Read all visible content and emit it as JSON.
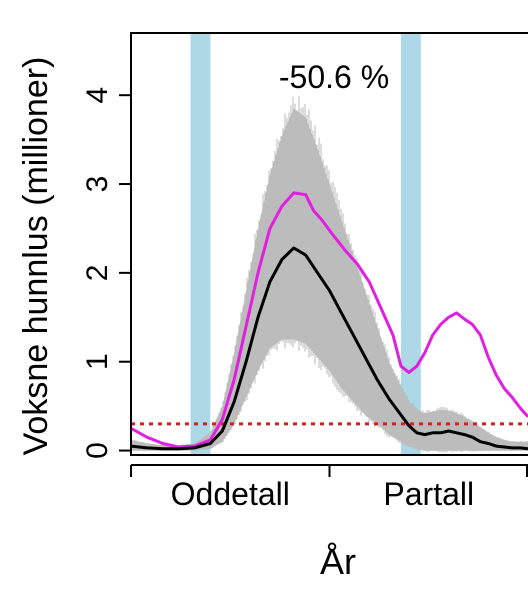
{
  "chart_data": {
    "type": "line",
    "title": "",
    "xlabel": "År",
    "ylabel": "Voksne hunnlus (millioner)",
    "ylim": [
      -0.05,
      4.7
    ],
    "xlim": [
      0,
      100
    ],
    "annotation": "-50.6 %",
    "x_tick_labels": [
      {
        "label": "Oddetall",
        "x": 25
      },
      {
        "label": "Partall",
        "x": 75
      }
    ],
    "x_ticks": [
      0,
      50,
      100
    ],
    "y_ticks": [
      0,
      1,
      2,
      3,
      4
    ],
    "highlight_bands": [
      [
        15,
        20
      ],
      [
        68,
        73
      ]
    ],
    "threshold": 0.3,
    "colors": {
      "band": "#add8e6",
      "threshold": "#cc2222",
      "ci": "#c0c0c0",
      "magenta": "#e020e0",
      "black": "#000000"
    },
    "series": [
      {
        "color": "magenta",
        "x": [
          0,
          4,
          8,
          12,
          16,
          20,
          23,
          26,
          29,
          32,
          35,
          38,
          41,
          44,
          46,
          48,
          51,
          54,
          57,
          60,
          63,
          66,
          68,
          70,
          72,
          74,
          76,
          78,
          80,
          82,
          84,
          86,
          88,
          90,
          92,
          94,
          96,
          98,
          100
        ],
        "y": [
          0.25,
          0.15,
          0.08,
          0.04,
          0.05,
          0.12,
          0.35,
          0.8,
          1.4,
          2.0,
          2.5,
          2.75,
          2.9,
          2.88,
          2.7,
          2.6,
          2.42,
          2.25,
          2.1,
          1.9,
          1.6,
          1.3,
          0.95,
          0.88,
          0.95,
          1.1,
          1.3,
          1.42,
          1.5,
          1.55,
          1.48,
          1.42,
          1.3,
          1.05,
          0.85,
          0.7,
          0.6,
          0.48,
          0.38
        ]
      },
      {
        "color": "black",
        "x": [
          0,
          4,
          8,
          12,
          16,
          20,
          23,
          26,
          29,
          32,
          35,
          38,
          41,
          44,
          47,
          50,
          53,
          56,
          59,
          62,
          65,
          68,
          70,
          72,
          74,
          76,
          78,
          80,
          82,
          84,
          86,
          88,
          90,
          92,
          94,
          96,
          98,
          100
        ],
        "y": [
          0.05,
          0.03,
          0.02,
          0.02,
          0.03,
          0.08,
          0.22,
          0.55,
          1.0,
          1.5,
          1.9,
          2.15,
          2.28,
          2.2,
          2.0,
          1.8,
          1.55,
          1.3,
          1.05,
          0.8,
          0.58,
          0.4,
          0.28,
          0.2,
          0.18,
          0.2,
          0.2,
          0.22,
          0.2,
          0.18,
          0.15,
          0.1,
          0.08,
          0.05,
          0.04,
          0.03,
          0.03,
          0.02
        ]
      }
    ],
    "ci_band": {
      "x": [
        0,
        4,
        8,
        12,
        16,
        20,
        23,
        26,
        29,
        32,
        35,
        38,
        41,
        44,
        47,
        50,
        53,
        56,
        59,
        62,
        65,
        68,
        70,
        72,
        74,
        76,
        78,
        80,
        82,
        84,
        86,
        88,
        90,
        92,
        94,
        96,
        98,
        100
      ],
      "lower": [
        0.0,
        0.0,
        0.0,
        0.0,
        0.0,
        0.02,
        0.1,
        0.3,
        0.6,
        0.9,
        1.15,
        1.25,
        1.25,
        1.2,
        1.05,
        0.9,
        0.7,
        0.55,
        0.4,
        0.3,
        0.18,
        0.1,
        0.05,
        0.02,
        0.0,
        0.0,
        0.0,
        0.0,
        0.0,
        0.0,
        0.0,
        0.0,
        0.0,
        0.0,
        0.0,
        0.0,
        0.0,
        0.0
      ],
      "upper": [
        0.12,
        0.08,
        0.06,
        0.06,
        0.08,
        0.2,
        0.5,
        1.1,
        1.8,
        2.5,
        3.1,
        3.55,
        3.85,
        3.75,
        3.4,
        3.0,
        2.6,
        2.2,
        1.8,
        1.4,
        1.0,
        0.72,
        0.55,
        0.45,
        0.42,
        0.44,
        0.46,
        0.45,
        0.42,
        0.38,
        0.32,
        0.26,
        0.2,
        0.15,
        0.12,
        0.1,
        0.1,
        0.1
      ]
    }
  }
}
